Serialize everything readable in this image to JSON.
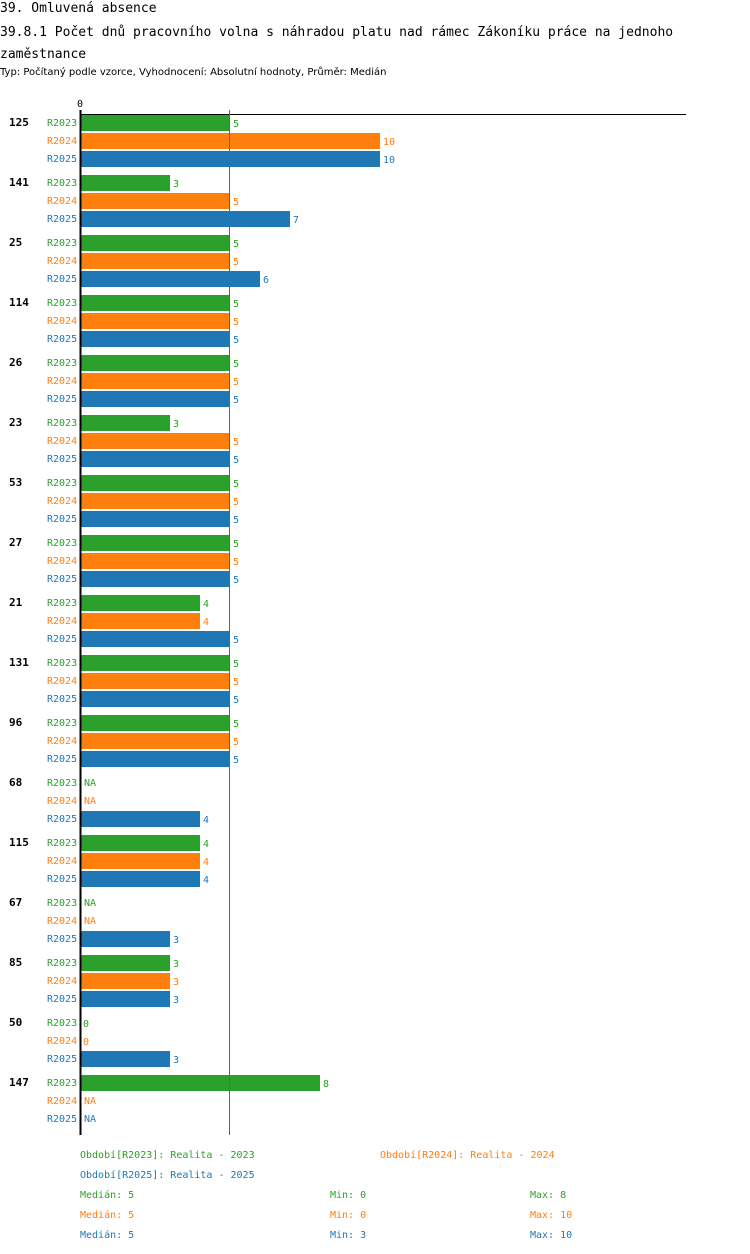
{
  "header": {
    "section_title": "39. Omluvená absence",
    "chart_title": "39.8.1 Počet dnů pracovního volna s náhradou platu nad rámec Zákoníku práce na jednoho zaměstnance",
    "subtitle": "Typ: Počítaný podle vzorce, Vyhodnocení: Absolutní hodnoty, Průměr: Medián"
  },
  "colors": {
    "R2023": "#2ca02c",
    "R2024": "#ff7f0e",
    "R2025": "#1f77b4"
  },
  "chart_data": {
    "type": "bar",
    "orientation": "horizontal",
    "axis_label_zero": "0",
    "xlim": [
      0,
      10
    ],
    "reference_line_value": 5,
    "na_label": "NA",
    "series_names": [
      "R2023",
      "R2024",
      "R2025"
    ],
    "categories": [
      "125",
      "141",
      "25",
      "114",
      "26",
      "23",
      "53",
      "27",
      "21",
      "131",
      "96",
      "68",
      "115",
      "67",
      "85",
      "50",
      "147"
    ],
    "series": [
      {
        "name": "R2023",
        "values": [
          5,
          3,
          5,
          5,
          5,
          3,
          5,
          5,
          4,
          5,
          5,
          null,
          4,
          null,
          3,
          0,
          8
        ]
      },
      {
        "name": "R2024",
        "values": [
          10,
          5,
          5,
          5,
          5,
          5,
          5,
          5,
          4,
          5,
          5,
          null,
          4,
          null,
          3,
          0,
          null
        ]
      },
      {
        "name": "R2025",
        "values": [
          10,
          7,
          6,
          5,
          5,
          5,
          5,
          5,
          5,
          5,
          5,
          4,
          4,
          3,
          3,
          3,
          null
        ]
      }
    ]
  },
  "legend": {
    "periods": [
      {
        "key": "R2023",
        "text": "Období[R2023]: Realita - 2023"
      },
      {
        "key": "R2024",
        "text": "Období[R2024]: Realita - 2024"
      },
      {
        "key": "R2025",
        "text": "Období[R2025]: Realita - 2025"
      }
    ],
    "stats": [
      {
        "key": "R2023",
        "median": "Medián: 5",
        "min": "Min: 0",
        "max": "Max: 8"
      },
      {
        "key": "R2024",
        "median": "Medián: 5",
        "min": "Min: 0",
        "max": "Max: 10"
      },
      {
        "key": "R2025",
        "median": "Medián: 5",
        "min": "Min: 3",
        "max": "Max: 10"
      }
    ]
  }
}
